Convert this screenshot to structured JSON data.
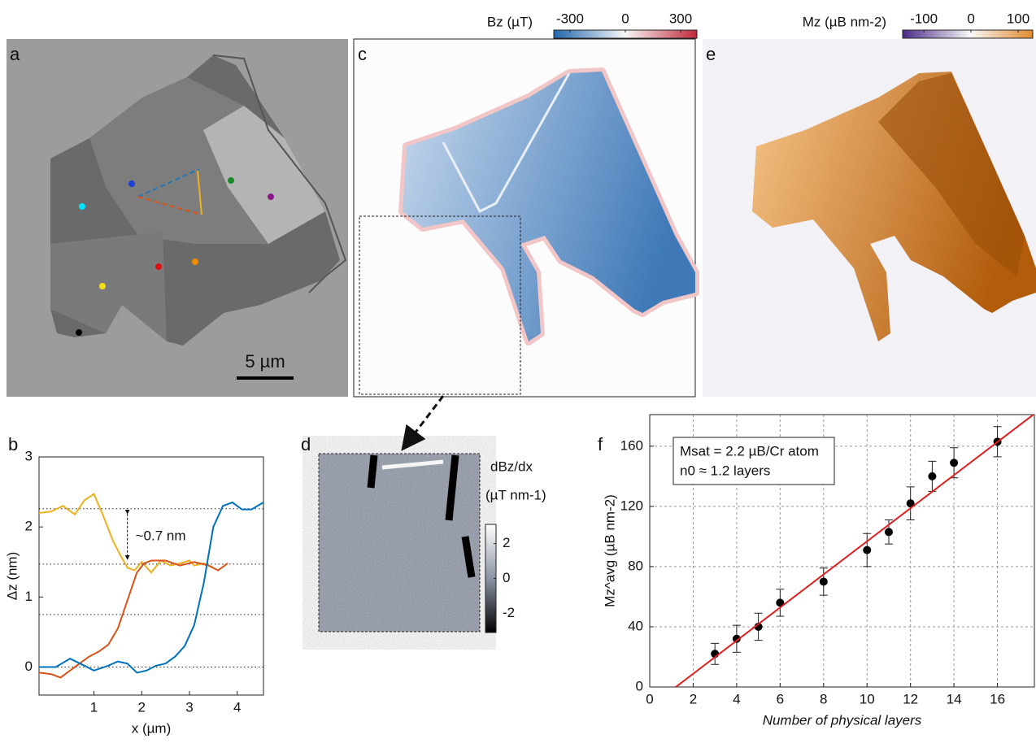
{
  "panel_labels": [
    "a",
    "b",
    "c",
    "d",
    "e",
    "f"
  ],
  "panel_a": {
    "scale_bar": "5 µm"
  },
  "colorbars": [
    {
      "label": "Bz (µT)",
      "ticks": [
        -300,
        0,
        300
      ],
      "lim": [
        -388,
        388
      ]
    },
    {
      "label": "Mz (µB nm-2)",
      "ticks": [
        -100,
        0,
        100
      ],
      "lim": [
        -145,
        131
      ]
    },
    {
      "label": "dBz/dx",
      "unit": "(µT nm-1)",
      "ticks": [
        2,
        0,
        -2
      ],
      "lim": [
        -3.1,
        3.1
      ]
    }
  ],
  "chart_data": [
    {
      "type": "line",
      "xlabel": "x (µm)",
      "ylabel": "Δz (nm)",
      "xlim": [
        -0.15,
        4.55
      ],
      "ylim": [
        -0.4,
        3
      ],
      "xticks": [
        1,
        2,
        3,
        4
      ],
      "yticks": [
        0,
        1,
        2,
        3
      ],
      "hlines": [
        0,
        0.75,
        1.47,
        2.26
      ],
      "annotation": "~0.7 nm",
      "series": [
        {
          "color": "#EDB120",
          "x": [
            -0.15,
            0.1,
            0.35,
            0.6,
            0.8,
            1.0,
            1.2,
            1.4,
            1.55,
            1.7,
            1.85,
            2.0,
            2.2,
            2.4,
            2.6,
            2.8,
            3.0,
            3.1,
            3.3,
            3.5
          ],
          "values": [
            2.2,
            2.22,
            2.3,
            2.18,
            2.38,
            2.47,
            2.15,
            1.8,
            1.6,
            1.42,
            1.38,
            1.5,
            1.35,
            1.52,
            1.45,
            1.48,
            1.52,
            1.45,
            1.48,
            1.42
          ]
        },
        {
          "color": "#D95319",
          "x": [
            -0.15,
            0.1,
            0.3,
            0.5,
            0.7,
            0.9,
            1.1,
            1.3,
            1.5,
            1.7,
            1.9,
            2.05,
            2.2,
            2.5,
            2.8,
            3.1,
            3.4,
            3.6,
            3.8
          ],
          "values": [
            -0.08,
            -0.1,
            -0.15,
            -0.05,
            0.05,
            0.15,
            0.22,
            0.32,
            0.55,
            0.95,
            1.35,
            1.48,
            1.52,
            1.52,
            1.45,
            1.5,
            1.45,
            1.38,
            1.48
          ]
        },
        {
          "color": "#0072BD",
          "x": [
            -0.15,
            0.2,
            0.5,
            0.8,
            1.0,
            1.3,
            1.5,
            1.7,
            1.9,
            2.1,
            2.3,
            2.5,
            2.7,
            2.9,
            3.1,
            3.3,
            3.5,
            3.7,
            3.9,
            4.1,
            4.3,
            4.55
          ],
          "values": [
            0,
            0,
            0.12,
            0.02,
            -0.05,
            0.02,
            0.08,
            0.05,
            -0.08,
            -0.05,
            0.02,
            0.05,
            0.15,
            0.3,
            0.6,
            1.2,
            2.0,
            2.3,
            2.35,
            2.25,
            2.25,
            2.35
          ]
        }
      ]
    },
    {
      "type": "scatter",
      "xlabel": "Number of physical layers",
      "ylabel": "Mz^avg (µB nm-2)",
      "xlim": [
        0,
        17.7
      ],
      "ylim": [
        0,
        181
      ],
      "xticks": [
        0,
        2,
        4,
        6,
        8,
        10,
        12,
        14,
        16
      ],
      "yticks": [
        0,
        40,
        80,
        120,
        160
      ],
      "grid": true,
      "annotations": [
        "Msat = 2.2 µB/Cr atom",
        "n0 ≈ 1.2 layers"
      ],
      "series": [
        {
          "color": "#000000",
          "style": "points",
          "x": [
            3,
            4,
            5,
            6,
            8,
            10,
            11,
            12,
            13,
            14,
            16
          ],
          "values": [
            22,
            32,
            40,
            56,
            70,
            91,
            103,
            122,
            140,
            149,
            163
          ],
          "errors": [
            7,
            9,
            9,
            9,
            9,
            11,
            8,
            11,
            10,
            10,
            10
          ]
        },
        {
          "color": "#E02020",
          "style": "line",
          "x": [
            1.2,
            17.7
          ],
          "values": [
            0,
            181.5
          ]
        }
      ]
    }
  ]
}
